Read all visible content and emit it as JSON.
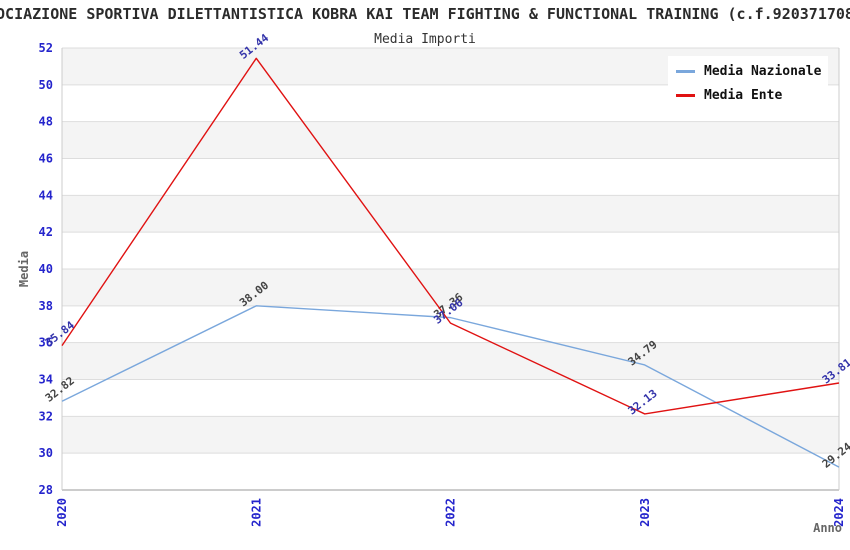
{
  "header": {
    "title": "OCIAZIONE SPORTIVA DILETTANTISTICA KOBRA KAI TEAM FIGHTING & FUNCTIONAL TRAINING (c.f.920371708",
    "subtitle": "Media Importi"
  },
  "legend": {
    "position": "top-right",
    "items": [
      {
        "label": "Media Nazionale",
        "color": "#7aa7dc"
      },
      {
        "label": "Media Ente",
        "color": "#e01212"
      }
    ]
  },
  "chart_data": {
    "type": "line",
    "title": "Media Importi",
    "xlabel": "Anno",
    "ylabel": "Media",
    "categories": [
      "2020",
      "2021",
      "2022",
      "2023",
      "2024"
    ],
    "series": [
      {
        "name": "Media Nazionale",
        "color": "#7aa7dc",
        "label_color": "#444444",
        "values": [
          32.82,
          38.0,
          37.36,
          34.79,
          29.24
        ]
      },
      {
        "name": "Media Ente",
        "color": "#e01212",
        "label_color": "#3333aa",
        "values": [
          35.84,
          51.44,
          37.06,
          32.13,
          33.81
        ]
      }
    ],
    "ylim": [
      28,
      52
    ],
    "ytick_step": 2,
    "grid": "horizontal-bands",
    "band_color": "#f4f4f4",
    "gridline_color": "#dddddd",
    "axis_line_color": "#999999",
    "plot_border_color": "#cccccc",
    "tick_color": "#2424cc",
    "axis_label_color": "#666666",
    "legend_position": "top-right"
  }
}
